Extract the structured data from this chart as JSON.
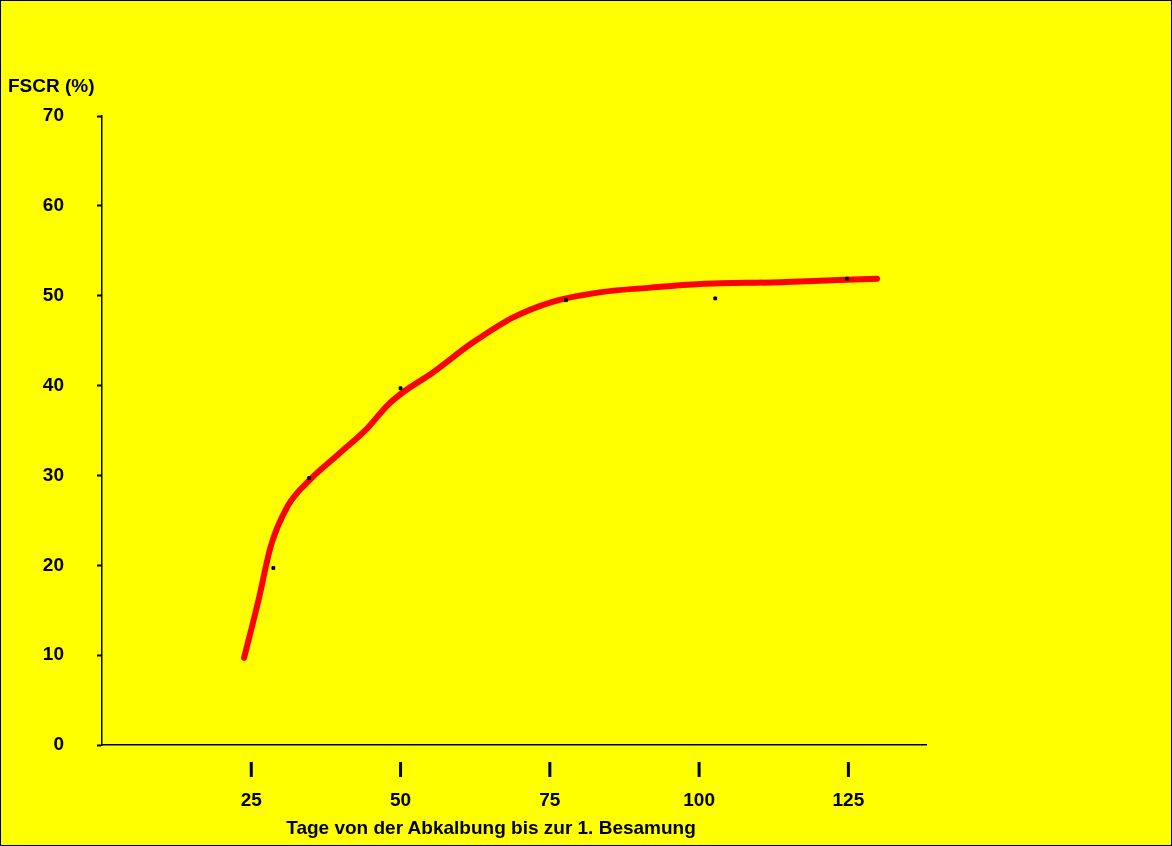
{
  "chart_data": {
    "type": "line",
    "xlabel": "Tage von der Abkalbung bis zur 1. Besamung",
    "ylabel": "FSCR (%)",
    "xlim": [
      0,
      138
    ],
    "xticks": [
      25,
      50,
      75,
      100,
      125
    ],
    "ylim": [
      0,
      70
    ],
    "yticks": [
      0,
      10,
      20,
      30,
      40,
      50,
      60,
      70
    ],
    "grid": false,
    "legend": false,
    "series": [
      {
        "color": "#ff0000",
        "marker": "none",
        "line_style": "solid",
        "x": [
          23.8,
          26.2,
          28.3,
          31.2,
          34.8,
          39.5,
          44.5,
          47.8,
          50.3,
          55.3,
          61.9,
          68.6,
          75.3,
          83.6,
          91.9,
          100.2,
          113.5,
          129.8
        ],
        "values": [
          9.7,
          16.1,
          22.2,
          26.7,
          29.5,
          32.3,
          35.3,
          37.8,
          39.2,
          41.4,
          44.7,
          47.5,
          49.3,
          50.4,
          50.9,
          51.3,
          51.5,
          51.9
        ]
      },
      {
        "type": "scatter",
        "color": "#000000",
        "marker": "square",
        "x": [
          28.7,
          34.7,
          50,
          77.7,
          102.7,
          124.8
        ],
        "values": [
          19.7,
          29.7,
          39.7,
          49.5,
          49.7,
          51.9
        ]
      }
    ]
  }
}
